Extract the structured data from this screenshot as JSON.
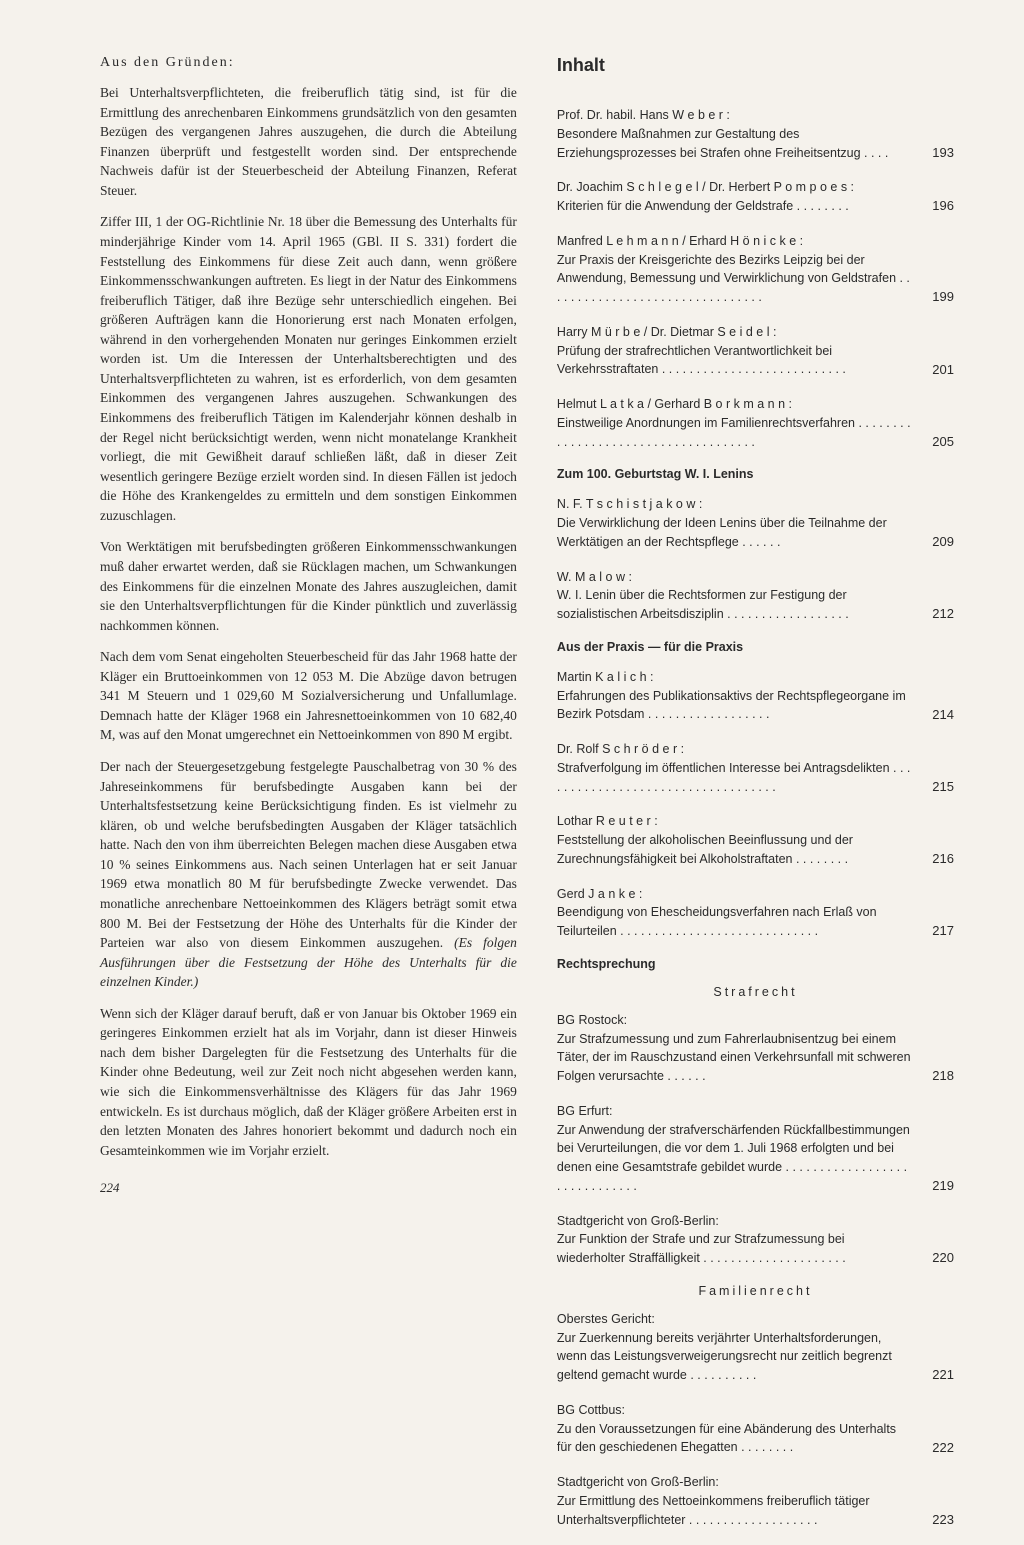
{
  "left": {
    "heading": "Aus den Gründen:",
    "p1": "Bei Unterhaltsverpflichteten, die freiberuflich tätig sind, ist für die Ermittlung des anrechenbaren Einkommens grundsätzlich von den gesamten Bezügen des vergangenen Jahres auszugehen, die durch die Abteilung Finanzen überprüft und festgestellt worden sind. Der entsprechende Nachweis dafür ist der Steuerbescheid der Abteilung Finanzen, Referat Steuer.",
    "p2": "Ziffer III, 1 der OG-Richtlinie Nr. 18 über die Bemessung des Unterhalts für minderjährige Kinder vom 14. April 1965 (GBl. II S. 331) fordert die Feststellung des Einkommens für diese Zeit auch dann, wenn größere Einkommensschwankungen auftreten. Es liegt in der Natur des Einkommens freiberuflich Tätiger, daß ihre Bezüge sehr unterschiedlich eingehen. Bei größeren Aufträgen kann die Honorierung erst nach Monaten erfolgen, während in den vorhergehenden Monaten nur geringes Einkommen erzielt worden ist. Um die Interessen der Unterhaltsberechtigten und des Unterhaltsverpflichteten zu wahren, ist es erforderlich, von dem gesamten Einkommen des vergangenen Jahres auszugehen. Schwankungen des Einkommens des freiberuflich Tätigen im Kalenderjahr können deshalb in der Regel nicht berücksichtigt werden, wenn nicht monatelange Krankheit vorliegt, die mit Gewißheit darauf schließen läßt, daß in dieser Zeit wesentlich geringere Bezüge erzielt worden sind. In diesen Fällen ist jedoch die Höhe des Krankengeldes zu ermitteln und dem sonstigen Einkommen zuzuschlagen.",
    "p3": "Von Werktätigen mit berufsbedingten größeren Einkommensschwankungen muß daher erwartet werden, daß sie Rücklagen machen, um Schwankungen des Einkommens für die einzelnen Monate des Jahres auszugleichen, damit sie den Unterhaltsverpflichtungen für die Kinder pünktlich und zuverlässig nachkommen können.",
    "p4": "Nach dem vom Senat eingeholten Steuerbescheid für das Jahr 1968 hatte der Kläger ein Bruttoeinkommen von 12 053 M. Die Abzüge davon betrugen 341 M Steuern und 1 029,60 M Sozialversicherung und Unfallumlage. Demnach hatte der Kläger 1968 ein Jahresnettoeinkommen von 10 682,40 M, was auf den Monat umgerechnet ein Nettoeinkommen von 890 M ergibt.",
    "p5a": "Der nach der Steuergesetzgebung festgelegte Pauschalbetrag von 30 % des Jahreseinkommens für berufsbedingte Ausgaben kann bei der Unterhaltsfestsetzung keine Berücksichtigung finden. Es ist vielmehr zu klären, ob und welche berufsbedingten Ausgaben der Kläger tatsächlich hatte. Nach den von ihm überreichten Belegen machen diese Ausgaben etwa 10 % seines Einkommens aus. Nach seinen Unterlagen hat er seit Januar 1969 etwa monatlich 80 M für berufsbedingte Zwecke verwendet. Das monatliche anrechenbare Nettoeinkommen des Klägers beträgt somit etwa 800 M. Bei der Festsetzung der Höhe des Unterhalts für die Kinder der Parteien war also von diesem Einkommen auszugehen. ",
    "p5b": "(Es folgen Ausführungen über die Festsetzung der Höhe des Unterhalts für die einzelnen Kinder.)",
    "p6": "Wenn sich der Kläger darauf beruft, daß er von Januar bis Oktober 1969 ein geringeres Einkommen erzielt hat als im Vorjahr, dann ist dieser Hinweis nach dem bisher Dargelegten für die Festsetzung des Unterhalts für die Kinder ohne Bedeutung, weil zur Zeit noch nicht abgesehen werden kann, wie sich die Einkommensverhältnisse des Klägers für das Jahr 1969 entwickeln. Es ist durchaus möglich, daß der Kläger größere Arbeiten erst in den letzten Monaten des Jahres honoriert bekommt und dadurch noch ein Gesamteinkommen wie im Vorjahr erzielt.",
    "pagenum": "224"
  },
  "right": {
    "title": "Inhalt",
    "entries": [
      {
        "author": "Prof. Dr. habil. Hans W e b e r :",
        "desc": "Besondere Maßnahmen zur Gestaltung des Erziehungsprozesses bei Strafen ohne Freiheitsentzug . . . .",
        "page": "193"
      },
      {
        "author": "Dr. Joachim S c h l e g e l / Dr. Herbert P o m p o e s :",
        "desc": "Kriterien für die Anwendung der Geldstrafe . . . . . . . .",
        "page": "196"
      },
      {
        "author": "Manfred L e h m a n n / Erhard H ö n i c k e :",
        "desc": "Zur Praxis der Kreisgerichte des Bezirks Leipzig bei der Anwendung, Bemessung und Verwirklichung von Geldstrafen  . . . . . . . . . . . . . . . . . . . . . . . . . . . . . . . .",
        "page": "199"
      },
      {
        "author": "Harry M ü r b e / Dr. Dietmar S e i d e l :",
        "desc": "Prüfung der strafrechtlichen Verantwortlichkeit bei Verkehrsstraftaten  . . . . . . . . . . . . . . . . . . . . . . . . . . .",
        "page": "201"
      },
      {
        "author": "Helmut L a t k a / Gerhard B o r k m a n n :",
        "desc": "Einstweilige Anordnungen im Familienrechtsverfahren  . . . . . . . . . . . . . . . . . . . . . . . . . . . . . . . . . . . . .",
        "page": "205"
      }
    ],
    "section1": "Zum 100. Geburtstag W. I. Lenins",
    "entries2": [
      {
        "author": "N. F. T s c h i s t j a k o w :",
        "desc": "Die Verwirklichung der Ideen Lenins über die Teilnahme der Werktätigen an der Rechtspflege . . . . . .",
        "page": "209"
      },
      {
        "author": "W. M a l o w :",
        "desc": "W. I. Lenin über die Rechtsformen zur Festigung der sozialistischen Arbeitsdisziplin . . . . . . . . . . . . . . . . . .",
        "page": "212"
      }
    ],
    "section2": "Aus der Praxis — für die Praxis",
    "entries3": [
      {
        "author": "Martin K a l i c h :",
        "desc": "Erfahrungen des Publikationsaktivs der Rechtspflegeorgane im Bezirk Potsdam . . . . . . . . . . . . . . . . . .",
        "page": "214"
      },
      {
        "author": "Dr. Rolf S c h r ö d e r :",
        "desc": "Strafverfolgung im öffentlichen Interesse bei Antragsdelikten  . . . . . . . . . . . . . . . . . . . . . . . . . . . . . . . . . . .",
        "page": "215"
      },
      {
        "author": "Lothar R e u t e r :",
        "desc": "Feststellung der alkoholischen Beeinflussung und der Zurechnungsfähigkeit bei Alkoholstraftaten . . . . . . . .",
        "page": "216"
      },
      {
        "author": "Gerd J a n k e :",
        "desc": "Beendigung von Ehescheidungsverfahren nach Erlaß von Teilurteilen  . . . . . . . . . . . . . . . . . . . . . . . . . . . . .",
        "page": "217"
      }
    ],
    "section3": "Rechtsprechung",
    "sub1": "Strafrecht",
    "entries4": [
      {
        "author": "BG Rostock:",
        "desc": "Zur Strafzumessung und zum Fahrerlaubnisentzug bei einem Täter, der im Rauschzustand einen Verkehrsunfall mit schweren Folgen verursachte . . . . . .",
        "page": "218"
      },
      {
        "author": "BG Erfurt:",
        "desc": "Zur Anwendung der strafverschärfenden Rückfallbestimmungen bei Verurteilungen, die vor dem 1. Juli 1968 erfolgten und bei denen eine Gesamtstrafe gebildet wurde . . . . . . . . . . . . . . . . . . . . . . . . . . . . . .",
        "page": "219"
      },
      {
        "author": "Stadtgericht von Groß-Berlin:",
        "desc": "Zur Funktion der Strafe und zur Strafzumessung bei wiederholter Straffälligkeit . . . . . . . . . . . . . . . . . . . . .",
        "page": "220"
      }
    ],
    "sub2": "Familienrecht",
    "entries5": [
      {
        "author": "Oberstes Gericht:",
        "desc": "Zur Zuerkennung bereits verjährter Unterhaltsforderungen, wenn das Leistungsverweigerungsrecht nur zeitlich begrenzt geltend gemacht wurde . . . . . . . . . .",
        "page": "221"
      },
      {
        "author": "BG Cottbus:",
        "desc": "Zu den Voraussetzungen für eine Abänderung des Unterhalts für den geschiedenen Ehegatten . . . . . . . .",
        "page": "222"
      },
      {
        "author": "Stadtgericht von Groß-Berlin:",
        "desc": "Zur Ermittlung des Nettoeinkommens freiberuflich tätiger Unterhaltsverpflichteter . . . . . . . . . . . . . . . . . . .",
        "page": "223"
      }
    ]
  }
}
